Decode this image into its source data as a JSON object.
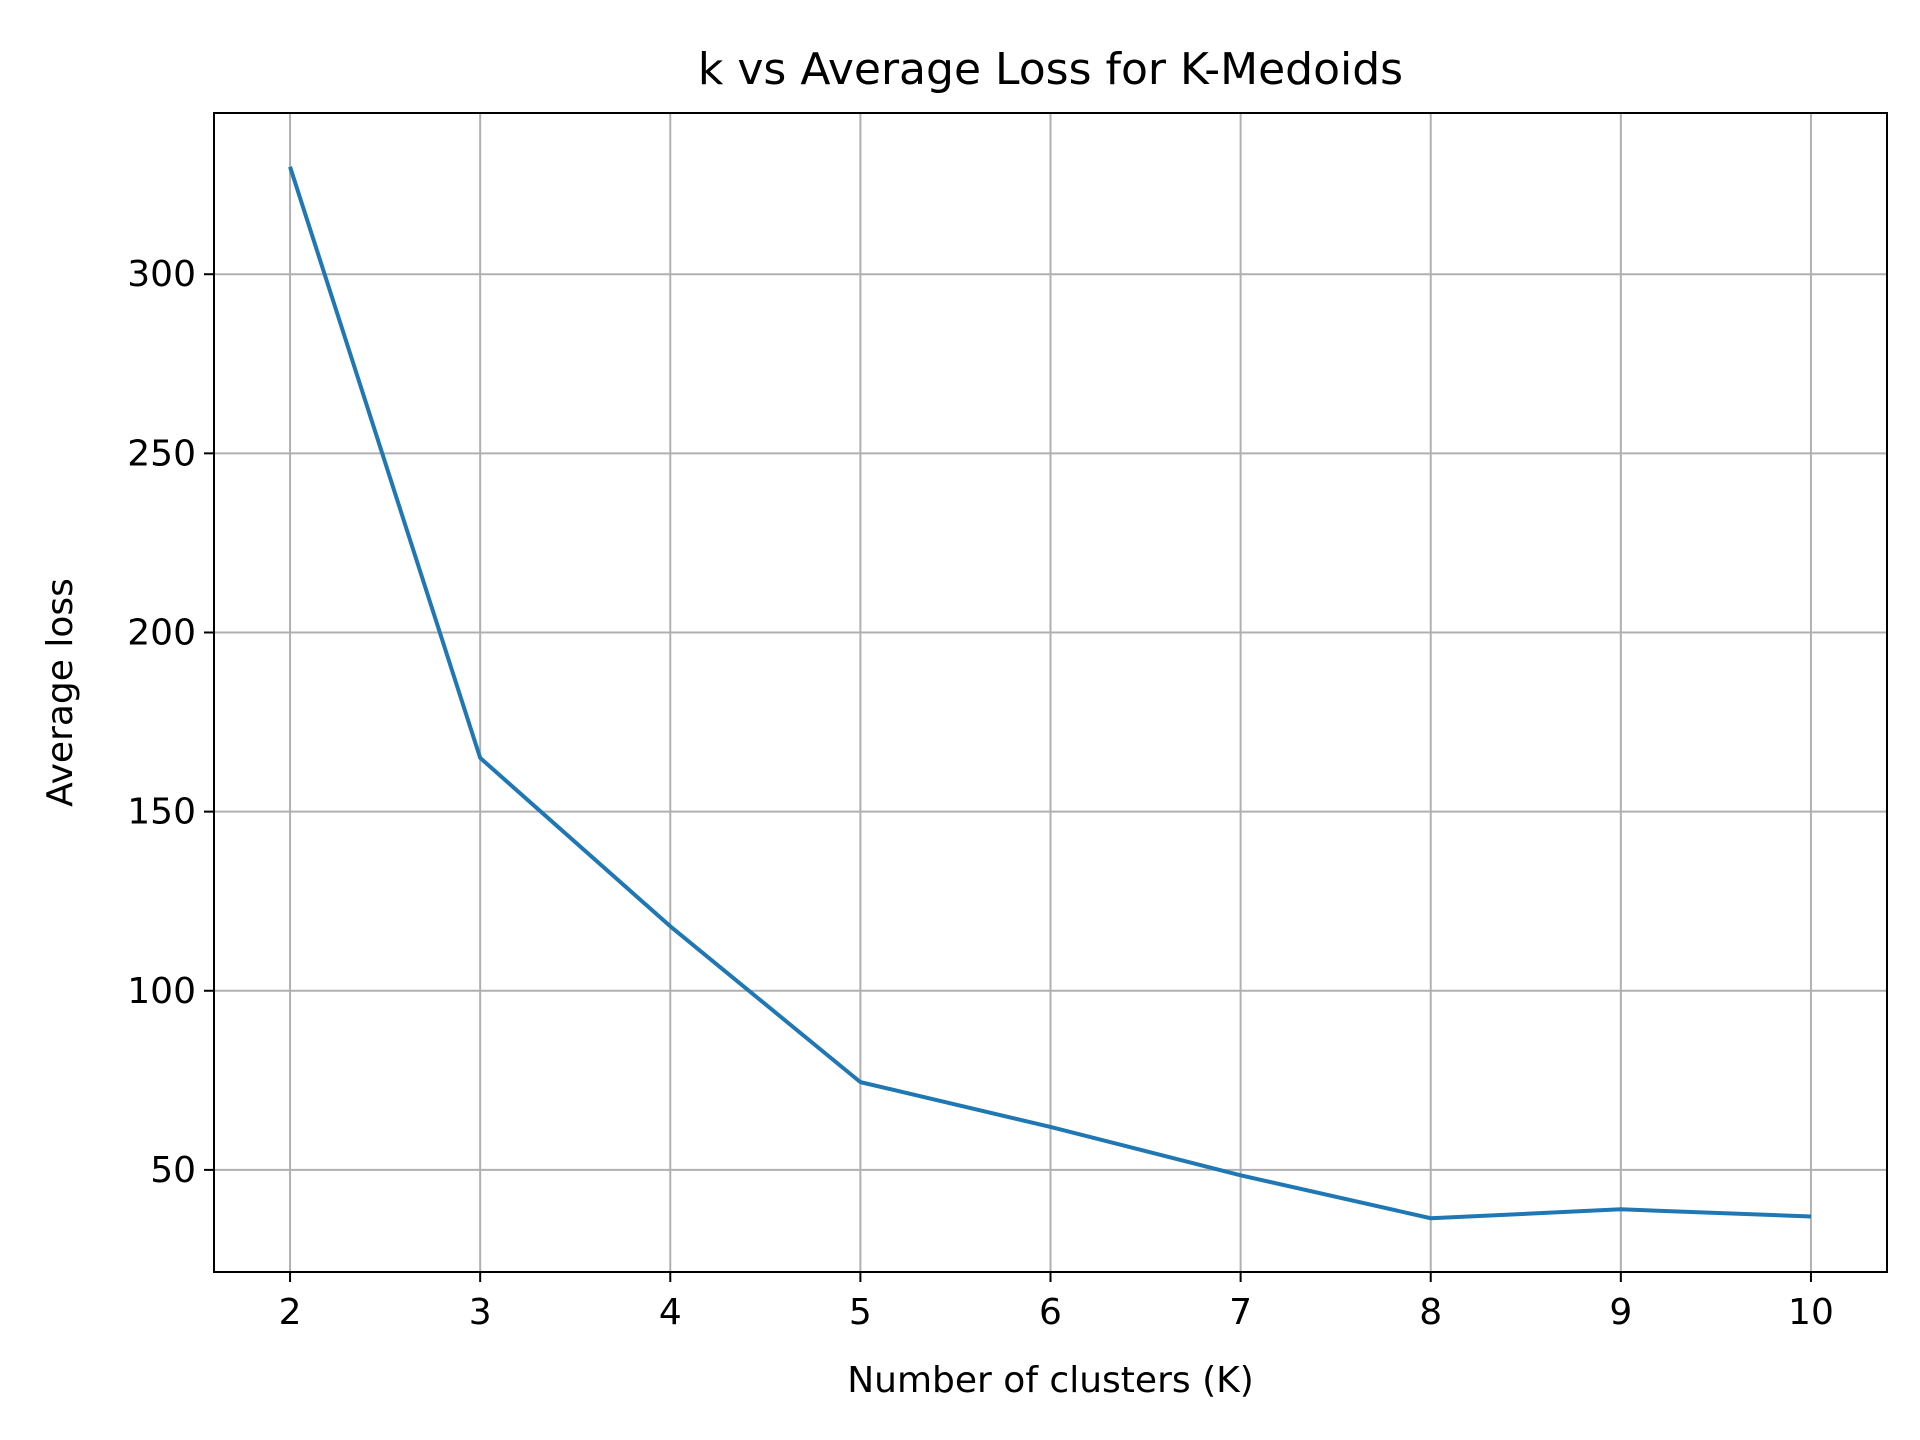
{
  "chart_data": {
    "type": "line",
    "title": "k vs Average Loss for K-Medoids",
    "xlabel": "Number of clusters (K)",
    "ylabel": "Average loss",
    "x": [
      2,
      3,
      4,
      5,
      6,
      7,
      8,
      9,
      10
    ],
    "series": [
      {
        "values": [
          330,
          165,
          118,
          74.5,
          62,
          48.5,
          36.5,
          39,
          37
        ],
        "color": "#1f77b4"
      }
    ],
    "xlim": [
      1.6,
      10.4
    ],
    "ylim": [
      21.5,
      345
    ],
    "xticks": [
      "2",
      "3",
      "4",
      "5",
      "6",
      "7",
      "8",
      "9",
      "10"
    ],
    "yticks": [
      "50",
      "100",
      "150",
      "200",
      "250",
      "300"
    ],
    "grid": true,
    "grid_color": "#b0b0b0",
    "axis_color": "#000000",
    "legend": "none"
  }
}
